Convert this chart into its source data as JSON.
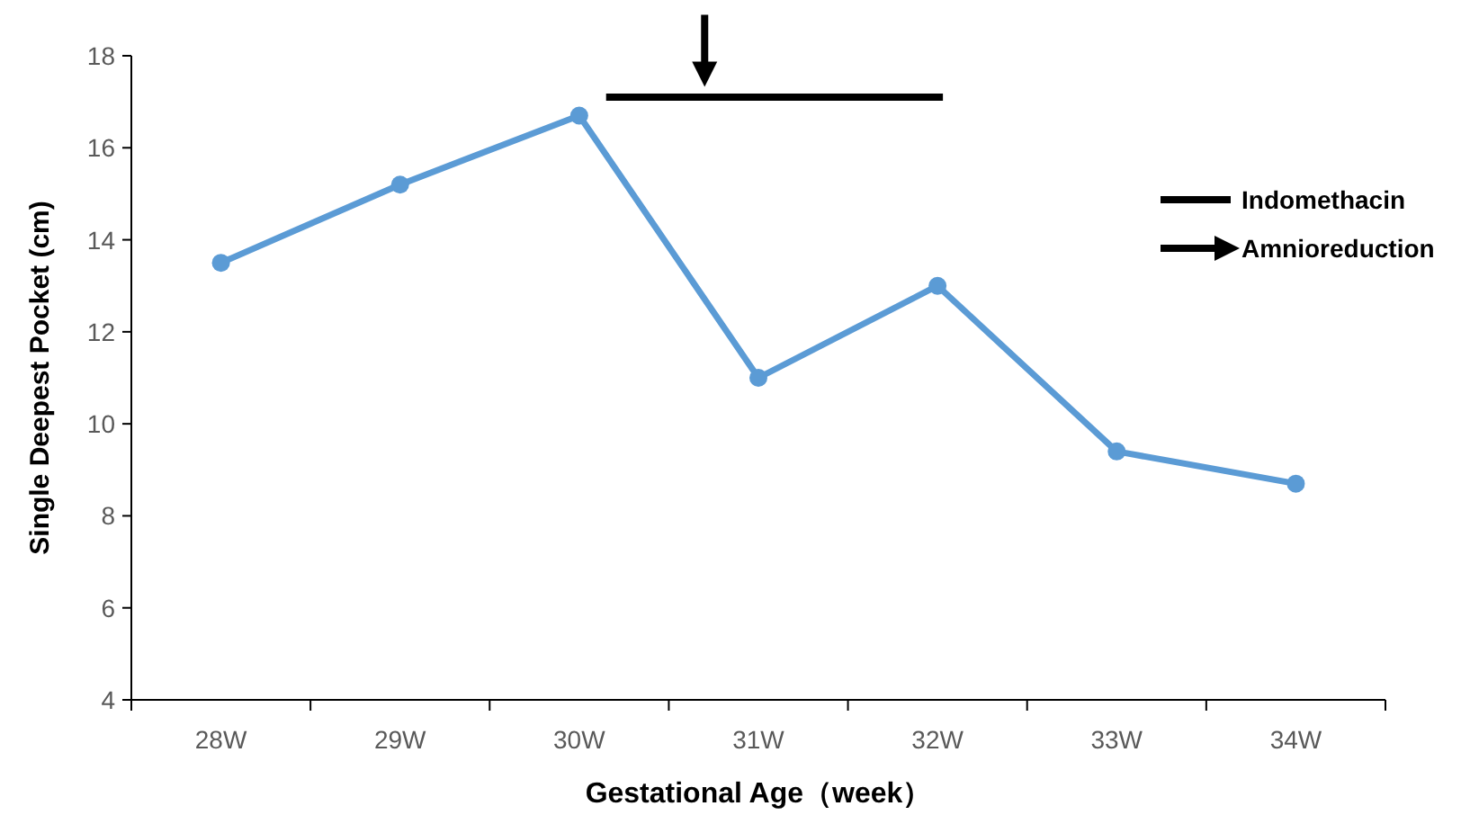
{
  "chart_data": {
    "type": "line",
    "xlabel": "Gestational Age（week）",
    "ylabel": "Single Deepest Pocket (cm)",
    "x": [
      28,
      29,
      30,
      31,
      32,
      33,
      34
    ],
    "xlim": [
      27.5,
      34.5
    ],
    "xticks": [
      {
        "value": 27.5,
        "label": null
      },
      {
        "value": 28,
        "label": "28W"
      },
      {
        "value": 28.5,
        "label": null
      },
      {
        "value": 29,
        "label": "29W"
      },
      {
        "value": 29.5,
        "label": null
      },
      {
        "value": 30,
        "label": "30W"
      },
      {
        "value": 30.5,
        "label": null
      },
      {
        "value": 31,
        "label": "31W"
      },
      {
        "value": 31.5,
        "label": null
      },
      {
        "value": 32,
        "label": "32W"
      },
      {
        "value": 32.5,
        "label": null
      },
      {
        "value": 33,
        "label": "33W"
      },
      {
        "value": 33.5,
        "label": null
      },
      {
        "value": 34,
        "label": "34W"
      },
      {
        "value": 34.5,
        "label": null
      }
    ],
    "ylim": [
      4,
      18
    ],
    "yticks": [
      4,
      6,
      8,
      10,
      12,
      14,
      16,
      18
    ],
    "grid": false,
    "marker": "circle",
    "legend": "right",
    "series": [
      {
        "color": "#5b9bd5",
        "values": [
          13.5,
          15.2,
          16.7,
          11.0,
          13.0,
          9.4,
          8.7
        ]
      },
      {
        "name": "Indomethacin",
        "color": "#000000",
        "marker": "none",
        "x": [
          30.15,
          32.03
        ],
        "values": [
          17.1,
          17.1
        ]
      },
      {
        "name": "Amnioreduction",
        "type": "scatter",
        "color": "#000000",
        "marker": "triangle",
        "x": [
          30.7
        ],
        "values": [
          17.6
        ]
      }
    ]
  }
}
